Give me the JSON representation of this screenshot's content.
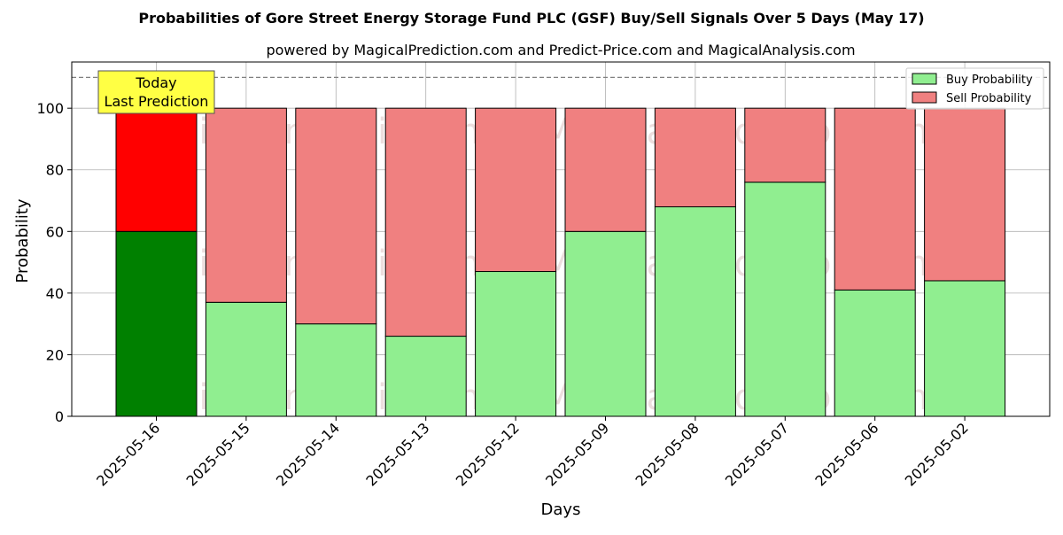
{
  "chart_data": {
    "type": "bar",
    "stacked": true,
    "title": "Probabilities of Gore Street Energy Storage Fund PLC (GSF) Buy/Sell Signals Over 5 Days (May 17)",
    "subtitle": "powered by MagicalPrediction.com and Predict-Price.com and MagicalAnalysis.com",
    "xlabel": "Days",
    "ylabel": "Probability",
    "ylim": [
      0,
      115
    ],
    "yticks": [
      0,
      20,
      40,
      60,
      80,
      100
    ],
    "grid": true,
    "legend_position": "top-right",
    "reference_line": 110,
    "categories": [
      "2025-05-16",
      "2025-05-15",
      "2025-05-14",
      "2025-05-13",
      "2025-05-12",
      "2025-05-09",
      "2025-05-08",
      "2025-05-07",
      "2025-05-06",
      "2025-05-02"
    ],
    "series": [
      {
        "name": "Buy Probability",
        "color": "#90ee90",
        "highlight_color": "#008000",
        "values": [
          60,
          37,
          30,
          26,
          47,
          60,
          68,
          76,
          41,
          44
        ]
      },
      {
        "name": "Sell Probability",
        "color": "#f08080",
        "highlight_color": "#ff0000",
        "values": [
          40,
          63,
          70,
          74,
          53,
          40,
          32,
          24,
          59,
          56
        ]
      }
    ],
    "annotation": {
      "line1": "Today",
      "line2": "Last Prediction",
      "color": "#ffff44"
    },
    "watermarks": [
      "MagicalAnalysis.com",
      "MagicalPrediction.com"
    ]
  }
}
